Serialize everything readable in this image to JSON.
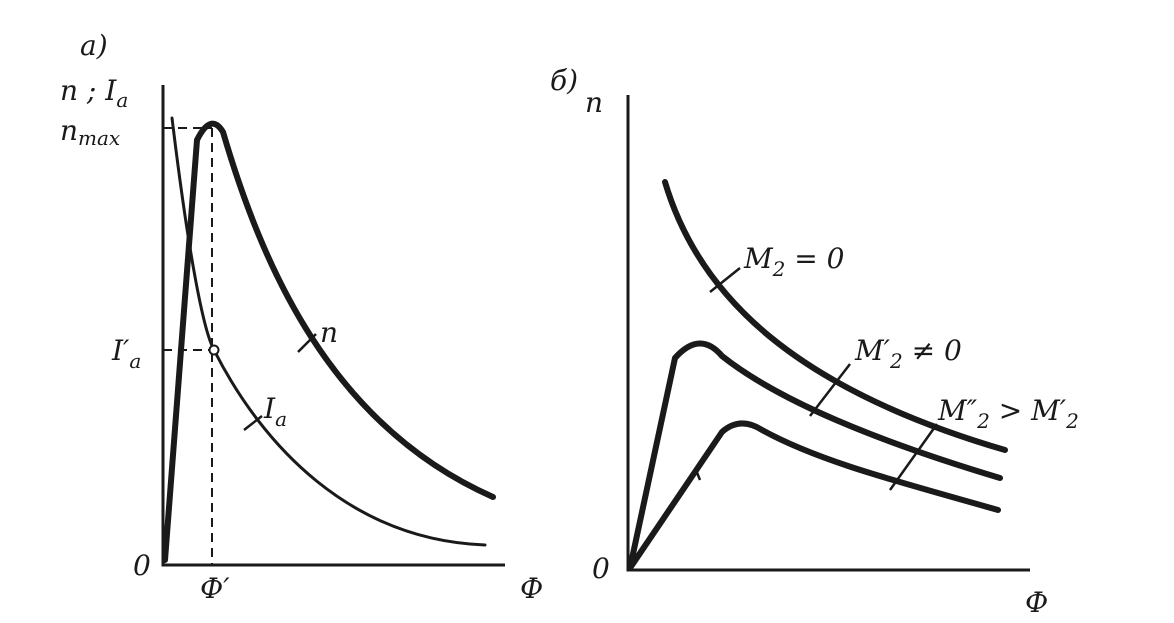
{
  "panel_a": {
    "label": "а)",
    "y_axis_label": [
      "n ; I",
      "a"
    ],
    "n_max": [
      "n",
      "max"
    ],
    "i_a_prime": [
      "I′",
      "a"
    ],
    "curve_n": "n",
    "curve_i_a": [
      "I",
      "a"
    ],
    "origin": "0",
    "phi_prime": "Ф′",
    "x_axis_label": "Ф"
  },
  "panel_b": {
    "label": "б)",
    "y_axis_label": "n",
    "curve_1": [
      "M",
      "2",
      " = 0"
    ],
    "curve_2": [
      "M′",
      "2",
      " ≠ 0"
    ],
    "curve_3": [
      "M″",
      "2",
      " > M′",
      "2"
    ],
    "origin": "0",
    "x_axis_label": "Ф"
  }
}
